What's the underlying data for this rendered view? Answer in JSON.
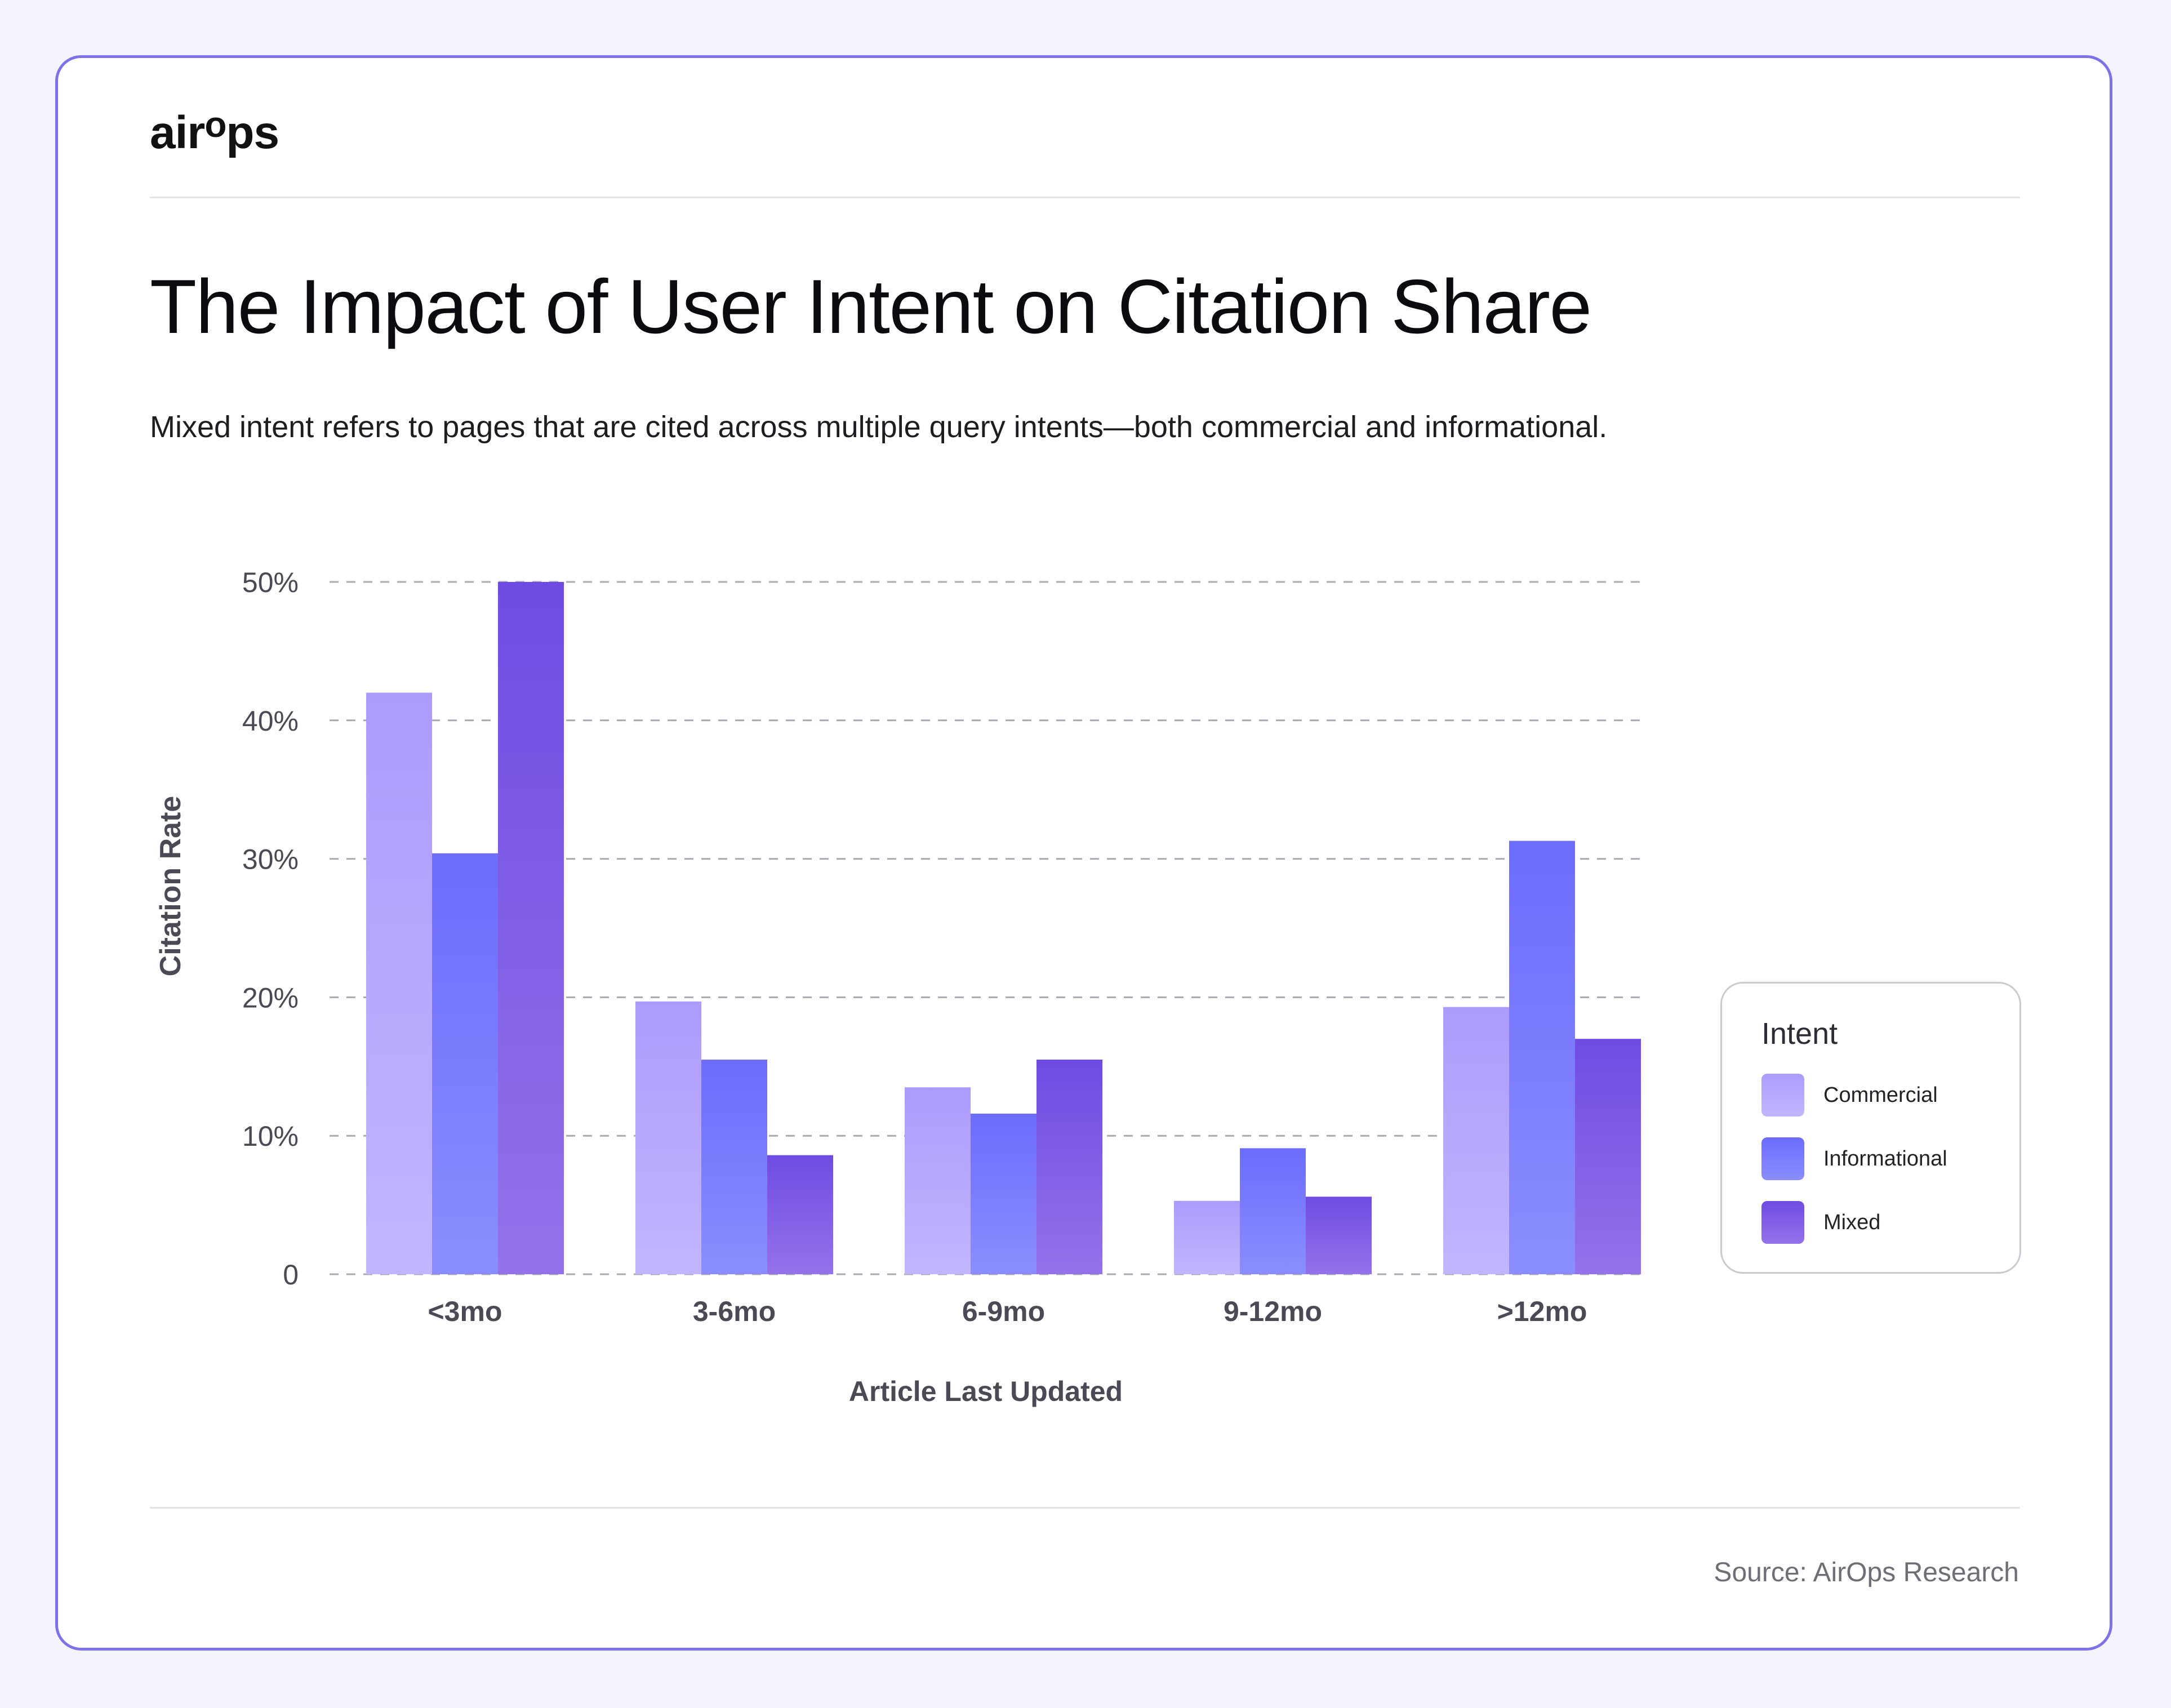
{
  "brand": {
    "logo_main": "air",
    "logo_raised": "o",
    "logo_tail": "ps"
  },
  "header": {
    "title": "The Impact of User Intent on Citation Share",
    "subtitle": "Mixed intent refers to pages that are cited across multiple query intents—both commercial and informational."
  },
  "chart_data": {
    "type": "bar",
    "title": "The Impact of User Intent on Citation Share",
    "xlabel": "Article Last Updated",
    "ylabel": "Citation Rate",
    "ylim": [
      0,
      50
    ],
    "yticks": [
      0,
      10,
      20,
      30,
      40,
      50
    ],
    "ytick_labels": [
      "0",
      "10%",
      "20%",
      "30%",
      "40%",
      "50%"
    ],
    "grid": true,
    "legend_position": "right",
    "legend_title": "Intent",
    "categories": [
      "<3mo",
      "3-6mo",
      "6-9mo",
      "9-12mo",
      ">12mo"
    ],
    "series": [
      {
        "name": "Commercial",
        "values": [
          42,
          19.7,
          13.5,
          5.3,
          19.3
        ]
      },
      {
        "name": "Informational",
        "values": [
          30.4,
          15.5,
          11.6,
          9.1,
          31.3
        ]
      },
      {
        "name": "Mixed",
        "values": [
          50,
          8.6,
          15.5,
          5.6,
          17
        ]
      }
    ]
  },
  "colors": {
    "card_border": "#7d72e8",
    "page_background": "#f5f4fd",
    "commercial_top": "#ad9bfc",
    "commercial_bottom": "#c2b5ff",
    "informational_top": "#6c6cfd",
    "informational_bottom": "#8a8efd",
    "mixed_top": "#6e4ce2",
    "mixed_bottom": "#9472ea"
  },
  "footer": {
    "source": "Source: AirOps Research"
  }
}
